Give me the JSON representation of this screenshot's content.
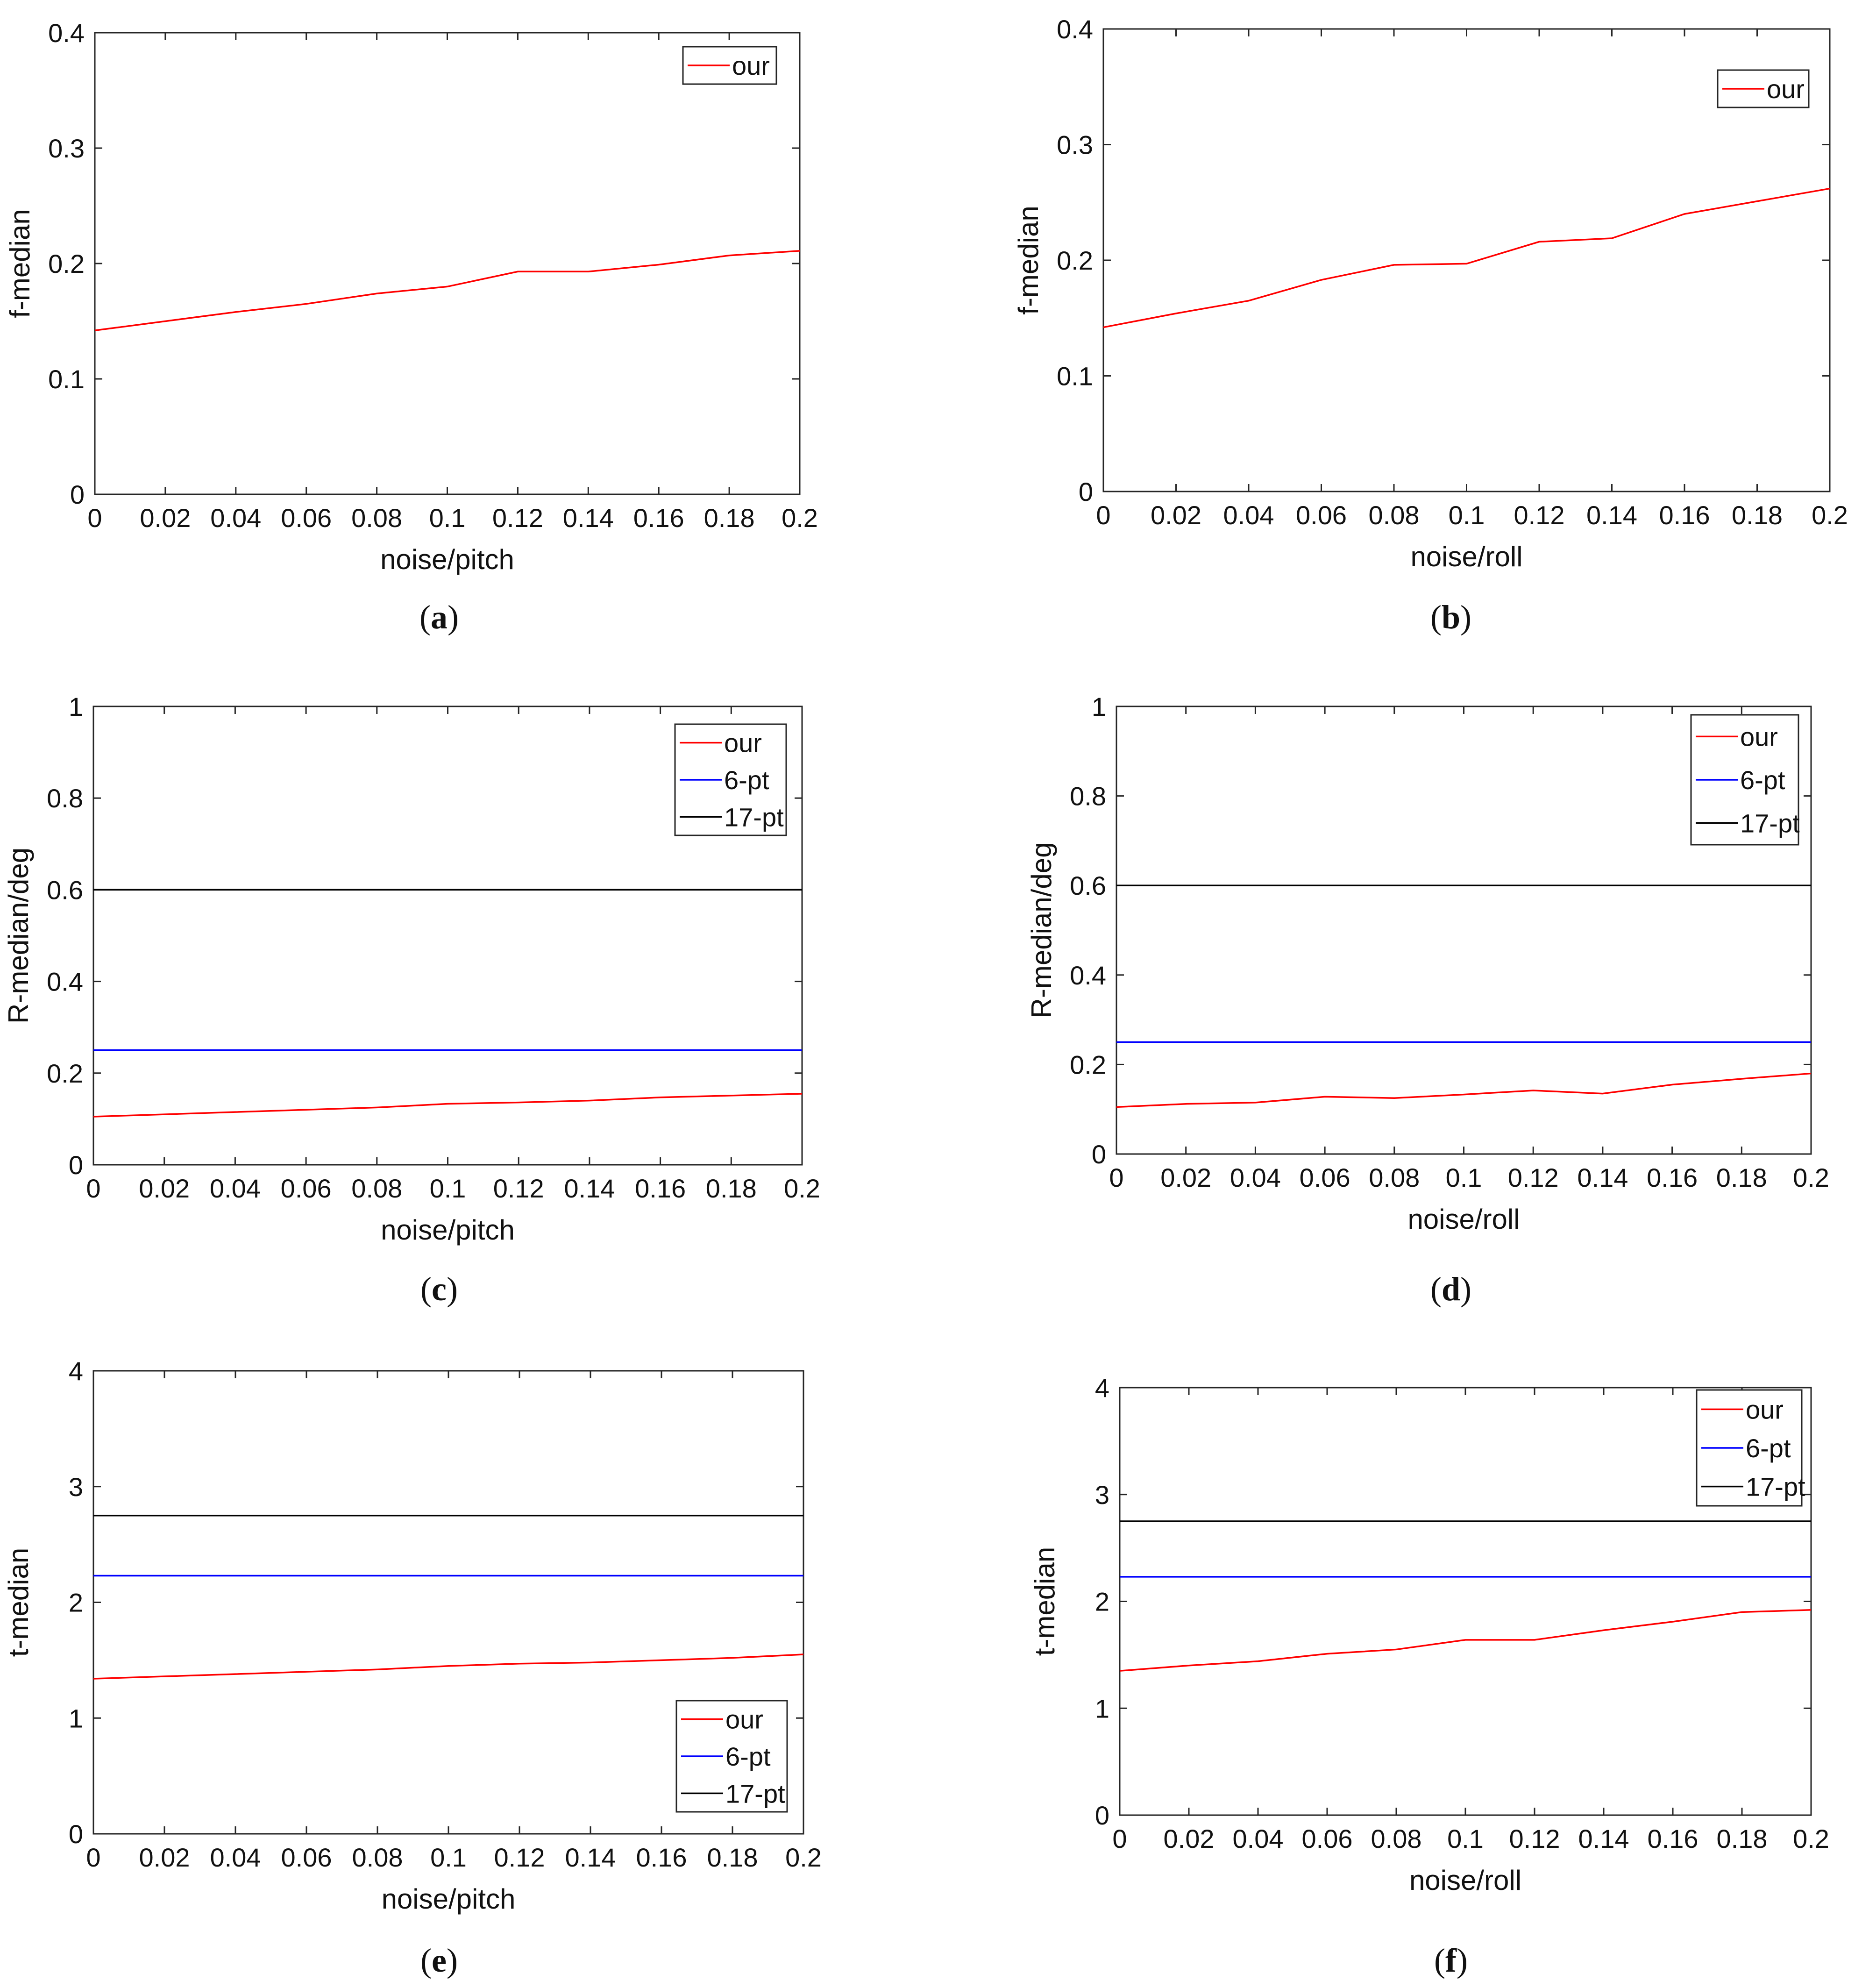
{
  "figure": {
    "panels": [
      "a",
      "b",
      "c",
      "d",
      "e",
      "f"
    ]
  },
  "chart_data": [
    {
      "id": "a",
      "caption": "(a)",
      "type": "line",
      "xlabel": "noise/pitch",
      "ylabel": "f-median",
      "xlim": [
        0,
        0.2
      ],
      "ylim": [
        0,
        0.4
      ],
      "xticks": [
        "0",
        "0.02",
        "0.04",
        "0.06",
        "0.08",
        "0.1",
        "0.12",
        "0.14",
        "0.16",
        "0.18",
        "0.2"
      ],
      "yticks": [
        "0",
        "0.1",
        "0.2",
        "0.3",
        "0.4"
      ],
      "x": [
        0,
        0.02,
        0.04,
        0.06,
        0.08,
        0.1,
        0.12,
        0.14,
        0.16,
        0.18,
        0.2
      ],
      "legend_position": "top-right",
      "series": [
        {
          "name": "our",
          "color": "#ff0000",
          "values": [
            0.142,
            0.15,
            0.158,
            0.165,
            0.174,
            0.18,
            0.193,
            0.193,
            0.199,
            0.207,
            0.211
          ]
        }
      ]
    },
    {
      "id": "b",
      "caption": "(b)",
      "type": "line",
      "xlabel": "noise/roll",
      "ylabel": "f-median",
      "xlim": [
        0,
        0.2
      ],
      "ylim": [
        0,
        0.4
      ],
      "xticks": [
        "0",
        "0.02",
        "0.04",
        "0.06",
        "0.08",
        "0.1",
        "0.12",
        "0.14",
        "0.16",
        "0.18",
        "0.2"
      ],
      "yticks": [
        "0",
        "0.1",
        "0.2",
        "0.3",
        "0.4"
      ],
      "x": [
        0,
        0.02,
        0.04,
        0.06,
        0.08,
        0.1,
        0.12,
        0.14,
        0.16,
        0.18,
        0.2
      ],
      "legend_position": "top-right",
      "series": [
        {
          "name": "our",
          "color": "#ff0000",
          "values": [
            0.142,
            0.154,
            0.165,
            0.183,
            0.196,
            0.197,
            0.216,
            0.219,
            0.24,
            0.251,
            0.262
          ]
        }
      ]
    },
    {
      "id": "c",
      "caption": "(c)",
      "type": "line",
      "xlabel": "noise/pitch",
      "ylabel": "R-median/deg",
      "xlim": [
        0,
        0.2
      ],
      "ylim": [
        0,
        1
      ],
      "xticks": [
        "0",
        "0.02",
        "0.04",
        "0.06",
        "0.08",
        "0.1",
        "0.12",
        "0.14",
        "0.16",
        "0.18",
        "0.2"
      ],
      "yticks": [
        "0",
        "0.2",
        "0.4",
        "0.6",
        "0.8",
        "1"
      ],
      "x": [
        0,
        0.02,
        0.04,
        0.06,
        0.08,
        0.1,
        0.12,
        0.14,
        0.16,
        0.18,
        0.2
      ],
      "legend_position": "top-right",
      "series": [
        {
          "name": "our",
          "color": "#ff0000",
          "values": [
            0.105,
            0.11,
            0.115,
            0.12,
            0.125,
            0.133,
            0.136,
            0.14,
            0.147,
            0.151,
            0.155
          ]
        },
        {
          "name": "6-pt",
          "color": "#0000ff",
          "values": [
            0.25,
            0.25,
            0.25,
            0.25,
            0.25,
            0.25,
            0.25,
            0.25,
            0.25,
            0.25,
            0.25
          ]
        },
        {
          "name": "17-pt",
          "color": "#000000",
          "values": [
            0.6,
            0.6,
            0.6,
            0.6,
            0.6,
            0.6,
            0.6,
            0.6,
            0.6,
            0.6,
            0.6
          ]
        }
      ]
    },
    {
      "id": "d",
      "caption": "(d)",
      "type": "line",
      "xlabel": "noise/roll",
      "ylabel": "R-median/deg",
      "xlim": [
        0,
        0.2
      ],
      "ylim": [
        0,
        1
      ],
      "xticks": [
        "0",
        "0.02",
        "0.04",
        "0.06",
        "0.08",
        "0.1",
        "0.12",
        "0.14",
        "0.16",
        "0.18",
        "0.2"
      ],
      "yticks": [
        "0",
        "0.2",
        "0.4",
        "0.6",
        "0.8",
        "1"
      ],
      "x": [
        0,
        0.02,
        0.04,
        0.06,
        0.08,
        0.1,
        0.12,
        0.14,
        0.16,
        0.18,
        0.2
      ],
      "legend_position": "top-right",
      "series": [
        {
          "name": "our",
          "color": "#ff0000",
          "values": [
            0.105,
            0.112,
            0.115,
            0.128,
            0.125,
            0.133,
            0.142,
            0.135,
            0.155,
            0.168,
            0.18
          ]
        },
        {
          "name": "6-pt",
          "color": "#0000ff",
          "values": [
            0.25,
            0.25,
            0.25,
            0.25,
            0.25,
            0.25,
            0.25,
            0.25,
            0.25,
            0.25,
            0.25
          ]
        },
        {
          "name": "17-pt",
          "color": "#000000",
          "values": [
            0.6,
            0.6,
            0.6,
            0.6,
            0.6,
            0.6,
            0.6,
            0.6,
            0.6,
            0.6,
            0.6
          ]
        }
      ]
    },
    {
      "id": "e",
      "caption": "(e)",
      "type": "line",
      "xlabel": "noise/pitch",
      "ylabel": "t-median",
      "xlim": [
        0,
        0.2
      ],
      "ylim": [
        0,
        4
      ],
      "xticks": [
        "0",
        "0.02",
        "0.04",
        "0.06",
        "0.08",
        "0.1",
        "0.12",
        "0.14",
        "0.16",
        "0.18",
        "0.2"
      ],
      "yticks": [
        "0",
        "1",
        "2",
        "3",
        "4"
      ],
      "x": [
        0,
        0.02,
        0.04,
        0.06,
        0.08,
        0.1,
        0.12,
        0.14,
        0.16,
        0.18,
        0.2
      ],
      "legend_position": "bottom-right",
      "series": [
        {
          "name": "our",
          "color": "#ff0000",
          "values": [
            1.34,
            1.36,
            1.38,
            1.4,
            1.42,
            1.45,
            1.47,
            1.48,
            1.5,
            1.52,
            1.55
          ]
        },
        {
          "name": "6-pt",
          "color": "#0000ff",
          "values": [
            2.23,
            2.23,
            2.23,
            2.23,
            2.23,
            2.23,
            2.23,
            2.23,
            2.23,
            2.23,
            2.23
          ]
        },
        {
          "name": "17-pt",
          "color": "#000000",
          "values": [
            2.75,
            2.75,
            2.75,
            2.75,
            2.75,
            2.75,
            2.75,
            2.75,
            2.75,
            2.75,
            2.75
          ]
        }
      ]
    },
    {
      "id": "f",
      "caption": "(f)",
      "type": "line",
      "xlabel": "noise/roll",
      "ylabel": "t-median",
      "xlim": [
        0,
        0.2
      ],
      "ylim": [
        0,
        4
      ],
      "xticks": [
        "0",
        "0.02",
        "0.04",
        "0.06",
        "0.08",
        "0.1",
        "0.12",
        "0.14",
        "0.16",
        "0.18",
        "0.2"
      ],
      "yticks": [
        "0",
        "1",
        "2",
        "3",
        "4"
      ],
      "x": [
        0,
        0.02,
        0.04,
        0.06,
        0.08,
        0.1,
        0.12,
        0.14,
        0.16,
        0.18,
        0.2
      ],
      "legend_position": "top-right",
      "series": [
        {
          "name": "our",
          "color": "#ff0000",
          "values": [
            1.35,
            1.4,
            1.44,
            1.51,
            1.55,
            1.64,
            1.64,
            1.73,
            1.81,
            1.9,
            1.92
          ]
        },
        {
          "name": "6-pt",
          "color": "#0000ff",
          "values": [
            2.23,
            2.23,
            2.23,
            2.23,
            2.23,
            2.23,
            2.23,
            2.23,
            2.23,
            2.23,
            2.23
          ]
        },
        {
          "name": "17-pt",
          "color": "#000000",
          "values": [
            2.75,
            2.75,
            2.75,
            2.75,
            2.75,
            2.75,
            2.75,
            2.75,
            2.75,
            2.75,
            2.75
          ]
        }
      ]
    }
  ]
}
